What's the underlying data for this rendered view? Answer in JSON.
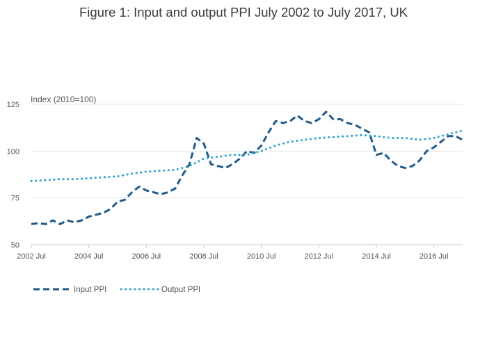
{
  "chart_data": {
    "type": "line",
    "title": "Figure 1: Input and output PPI July 2002 to July 2017, UK",
    "ylabel": "Index (2010=100)",
    "xlabel": "",
    "ylim": [
      50,
      125
    ],
    "xlim": [
      "2002-07",
      "2017-07"
    ],
    "grid": "horizontal",
    "legend_position": "bottom-left",
    "y_ticks": [
      50,
      75,
      100,
      125
    ],
    "x_tick_labels": [
      "2002 Jul",
      "2004 Jul",
      "2006 Jul",
      "2008 Jul",
      "2010 Jul",
      "2012 Jul",
      "2014 Jul",
      "2016 Jul"
    ],
    "x_tick_dates": [
      "2002-07",
      "2004-07",
      "2006-07",
      "2008-07",
      "2010-07",
      "2012-07",
      "2014-07",
      "2016-07"
    ],
    "series": [
      {
        "name": "Input PPI",
        "style": "dashed",
        "color": "#1f5a8a",
        "x": [
          "2002-07",
          "2002-10",
          "2003-01",
          "2003-04",
          "2003-07",
          "2003-10",
          "2004-01",
          "2004-04",
          "2004-07",
          "2004-10",
          "2005-01",
          "2005-04",
          "2005-07",
          "2005-10",
          "2006-01",
          "2006-04",
          "2006-07",
          "2006-10",
          "2007-01",
          "2007-04",
          "2007-07",
          "2007-10",
          "2008-01",
          "2008-04",
          "2008-07",
          "2008-10",
          "2009-01",
          "2009-04",
          "2009-07",
          "2009-10",
          "2010-01",
          "2010-04",
          "2010-07",
          "2010-10",
          "2011-01",
          "2011-04",
          "2011-07",
          "2011-10",
          "2012-01",
          "2012-04",
          "2012-07",
          "2012-10",
          "2013-01",
          "2013-04",
          "2013-07",
          "2013-10",
          "2014-01",
          "2014-04",
          "2014-07",
          "2014-10",
          "2015-01",
          "2015-04",
          "2015-07",
          "2015-10",
          "2016-01",
          "2016-04",
          "2016-07",
          "2016-10",
          "2017-01",
          "2017-04",
          "2017-07"
        ],
        "values": [
          61,
          61.5,
          61,
          63,
          61,
          63,
          62,
          63,
          65,
          66,
          67,
          69,
          73,
          74,
          78,
          81,
          79,
          78,
          77,
          78,
          80,
          87,
          93,
          107,
          104,
          93,
          92,
          91,
          93,
          96,
          100,
          99,
          103,
          110,
          116,
          115,
          116,
          119,
          116,
          115,
          117,
          121,
          117,
          117,
          115,
          114,
          112,
          110,
          98,
          99,
          95,
          92,
          91,
          92,
          95,
          100,
          102,
          105,
          108,
          108,
          106
        ]
      },
      {
        "name": "Output PPI",
        "style": "dotted",
        "color": "#27a0cc",
        "x": [
          "2002-07",
          "2003-01",
          "2003-07",
          "2004-01",
          "2004-07",
          "2005-01",
          "2005-07",
          "2006-01",
          "2006-07",
          "2007-01",
          "2007-07",
          "2008-01",
          "2008-07",
          "2009-01",
          "2009-07",
          "2010-01",
          "2010-07",
          "2011-01",
          "2011-07",
          "2012-01",
          "2012-07",
          "2013-01",
          "2013-07",
          "2014-01",
          "2014-07",
          "2015-01",
          "2015-07",
          "2016-01",
          "2016-07",
          "2017-01",
          "2017-07"
        ],
        "values": [
          84,
          84.5,
          85,
          85,
          85.5,
          86,
          86.5,
          88,
          89,
          89.5,
          90,
          92,
          96,
          97,
          98,
          98,
          100,
          103,
          105,
          106,
          107,
          107.5,
          108,
          108.5,
          108,
          107,
          107,
          106,
          107,
          109,
          111
        ]
      }
    ]
  }
}
